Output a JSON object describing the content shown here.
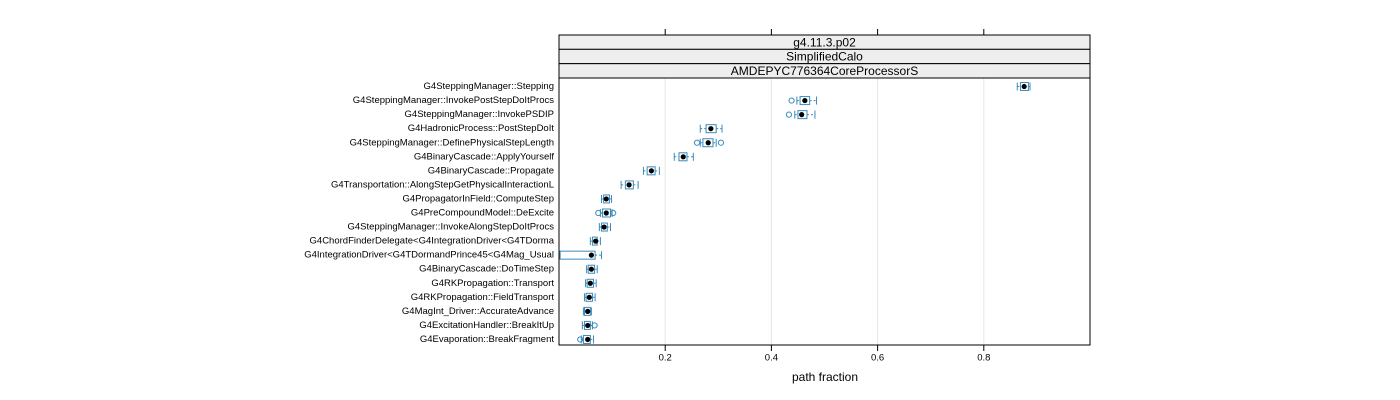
{
  "chart_data": {
    "type": "box",
    "strips": [
      "g4.11.3.p02",
      "SimplifiedCalo",
      "AMDEPYC776364CoreProcessorS"
    ],
    "x_label": "path fraction",
    "color": "#3a8bbd",
    "xlim": [
      0,
      1.0
    ],
    "xticks": [
      0.2,
      0.4,
      0.6,
      0.8
    ],
    "grid": true,
    "categories": [
      "G4SteppingManager::Stepping",
      "G4SteppingManager::InvokePostStepDoItProcs",
      "G4SteppingManager::InvokePSDIP",
      "G4HadronicProcess::PostStepDoIt",
      "G4SteppingManager::DefinePhysicalStepLength",
      "G4BinaryCascade::ApplyYourself",
      "G4BinaryCascade::Propagate",
      "G4Transportation::AlongStepGetPhysicalInteractionL",
      "G4PropagatorInField::ComputeStep",
      "G4PreCompoundModel::DeExcite",
      "G4SteppingManager::InvokeAlongStepDoItProcs",
      "G4ChordFinderDelegate<G4IntegrationDriver<G4TDorma",
      "G4IntegrationDriver<G4TDormandPrince45<G4Mag_Usual",
      "G4BinaryCascade::DoTimeStep",
      "G4RKPropagation::Transport",
      "G4RKPropagation::FieldTransport",
      "G4MagInt_Driver::AccurateAdvance",
      "G4ExcitationHandler::BreakItUp",
      "G4Evaporation::BreakFragment"
    ],
    "boxes": [
      {
        "median": 0.876,
        "q1": 0.869,
        "q3": 0.884,
        "whisker_low": 0.863,
        "whisker_high": 0.887,
        "outliers": []
      },
      {
        "median": 0.463,
        "q1": 0.454,
        "q3": 0.472,
        "whisker_low": 0.448,
        "whisker_high": 0.485,
        "outliers": [
          0.438
        ]
      },
      {
        "median": 0.457,
        "q1": 0.45,
        "q3": 0.467,
        "whisker_low": 0.444,
        "whisker_high": 0.482,
        "outliers": [
          0.433
        ]
      },
      {
        "median": 0.286,
        "q1": 0.277,
        "q3": 0.296,
        "whisker_low": 0.266,
        "whisker_high": 0.307,
        "outliers": []
      },
      {
        "median": 0.281,
        "q1": 0.271,
        "q3": 0.29,
        "whisker_low": 0.266,
        "whisker_high": 0.296,
        "outliers": [
          0.26,
          0.305
        ]
      },
      {
        "median": 0.234,
        "q1": 0.226,
        "q3": 0.241,
        "whisker_low": 0.217,
        "whisker_high": 0.253,
        "outliers": []
      },
      {
        "median": 0.174,
        "q1": 0.166,
        "q3": 0.181,
        "whisker_low": 0.159,
        "whisker_high": 0.189,
        "outliers": []
      },
      {
        "median": 0.132,
        "q1": 0.125,
        "q3": 0.14,
        "whisker_low": 0.117,
        "whisker_high": 0.149,
        "outliers": []
      },
      {
        "median": 0.089,
        "q1": 0.084,
        "q3": 0.095,
        "whisker_low": 0.08,
        "whisker_high": 0.099,
        "outliers": []
      },
      {
        "median": 0.089,
        "q1": 0.082,
        "q3": 0.097,
        "whisker_low": 0.078,
        "whisker_high": 0.1,
        "outliers": [
          0.074,
          0.102
        ]
      },
      {
        "median": 0.085,
        "q1": 0.08,
        "q3": 0.091,
        "whisker_low": 0.076,
        "whisker_high": 0.097,
        "outliers": []
      },
      {
        "median": 0.069,
        "q1": 0.063,
        "q3": 0.072,
        "whisker_low": 0.059,
        "whisker_high": 0.078,
        "outliers": []
      },
      {
        "median": 0.061,
        "q1": 0.002,
        "q3": 0.068,
        "whisker_low": 0.002,
        "whisker_high": 0.08,
        "outliers": []
      },
      {
        "median": 0.061,
        "q1": 0.055,
        "q3": 0.067,
        "whisker_low": 0.052,
        "whisker_high": 0.072,
        "outliers": []
      },
      {
        "median": 0.059,
        "q1": 0.053,
        "q3": 0.065,
        "whisker_low": 0.05,
        "whisker_high": 0.07,
        "outliers": []
      },
      {
        "median": 0.057,
        "q1": 0.051,
        "q3": 0.063,
        "whisker_low": 0.048,
        "whisker_high": 0.068,
        "outliers": []
      },
      {
        "median": 0.054,
        "q1": 0.048,
        "q3": 0.059,
        "whisker_low": 0.046,
        "whisker_high": 0.061,
        "outliers": []
      },
      {
        "median": 0.054,
        "q1": 0.048,
        "q3": 0.059,
        "whisker_low": 0.044,
        "whisker_high": 0.063,
        "outliers": [
          0.067
        ]
      },
      {
        "median": 0.054,
        "q1": 0.046,
        "q3": 0.059,
        "whisker_low": 0.042,
        "whisker_high": 0.065,
        "outliers": [
          0.04
        ]
      }
    ]
  }
}
